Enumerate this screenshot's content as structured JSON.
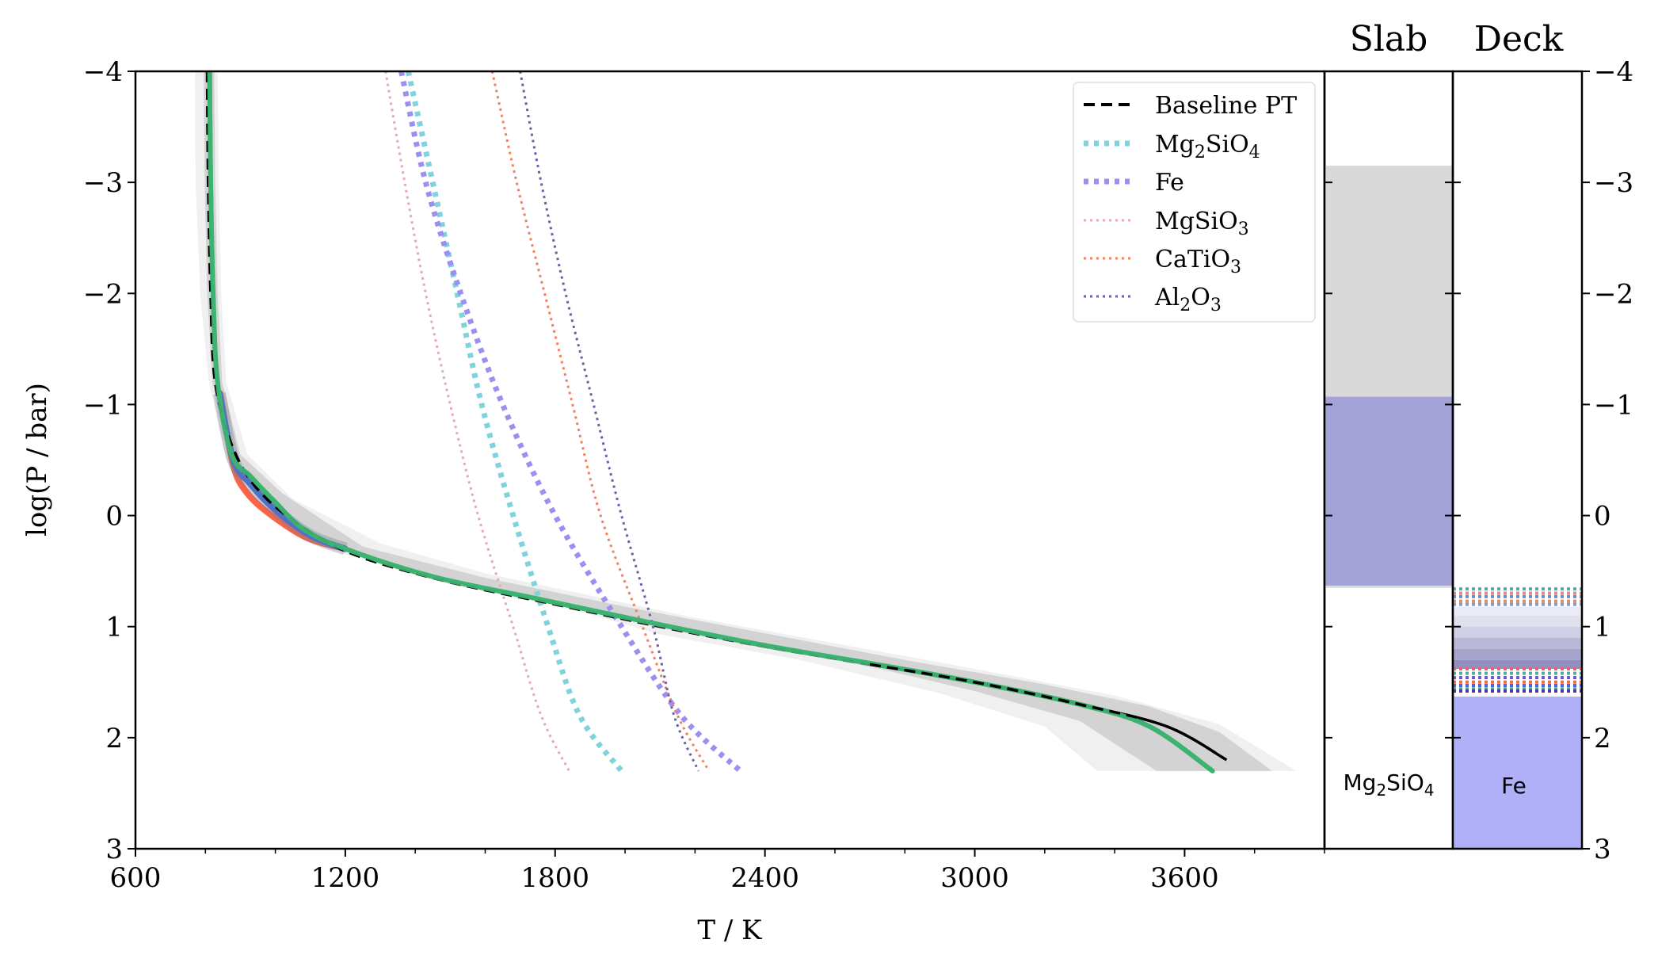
{
  "chart_data": {
    "type": "line",
    "xlabel": "T / K",
    "ylabel": "log(P / bar)",
    "xlim": [
      600,
      4000
    ],
    "ylim": [
      3,
      -4
    ],
    "x_ticks": [
      "600",
      "1200",
      "1800",
      "2400",
      "3000",
      "3600"
    ],
    "x_tick_values": [
      600,
      1200,
      1800,
      2400,
      3000,
      3600
    ],
    "y_ticks": [
      "−4",
      "−3",
      "−2",
      "−1",
      "0",
      "1",
      "2",
      "3"
    ],
    "y_tick_values": [
      -4,
      -3,
      -2,
      -1,
      0,
      1,
      2,
      3
    ],
    "baseline": {
      "name": "Baseline PT",
      "points": [
        [
          805,
          -4
        ],
        [
          808,
          -3
        ],
        [
          815,
          -2
        ],
        [
          828,
          -1.2
        ],
        [
          880,
          -0.6
        ],
        [
          960,
          -0.2
        ],
        [
          1100,
          0.15
        ],
        [
          1250,
          0.38
        ],
        [
          1500,
          0.6
        ],
        [
          1800,
          0.8
        ],
        [
          2100,
          1.0
        ],
        [
          2400,
          1.18
        ],
        [
          2700,
          1.34
        ],
        [
          3000,
          1.5
        ],
        [
          3300,
          1.7
        ],
        [
          3550,
          1.9
        ],
        [
          3720,
          2.2
        ]
      ]
    },
    "model_profiles": [
      {
        "name": "green",
        "color": "#3cb371",
        "points": [
          [
            812,
            -4
          ],
          [
            815,
            -3
          ],
          [
            822,
            -2
          ],
          [
            835,
            -1.2
          ],
          [
            875,
            -0.55
          ],
          [
            930,
            -0.35
          ],
          [
            1000,
            -0.12
          ],
          [
            1080,
            0.12
          ],
          [
            1200,
            0.3
          ],
          [
            1450,
            0.55
          ],
          [
            1750,
            0.75
          ],
          [
            2050,
            0.95
          ],
          [
            2400,
            1.17
          ],
          [
            2700,
            1.33
          ],
          [
            3000,
            1.5
          ],
          [
            3300,
            1.7
          ],
          [
            3500,
            1.9
          ],
          [
            3680,
            2.3
          ]
        ]
      },
      {
        "name": "blue",
        "color": "#4169e1",
        "points": [
          [
            840,
            -1.1
          ],
          [
            880,
            -0.5
          ],
          [
            930,
            -0.28
          ],
          [
            1000,
            -0.05
          ],
          [
            1100,
            0.18
          ],
          [
            1200,
            0.3
          ]
        ]
      },
      {
        "name": "red",
        "color": "#ff6347",
        "points": [
          [
            842,
            -1.1
          ],
          [
            880,
            -0.45
          ],
          [
            920,
            -0.2
          ],
          [
            990,
            0.0
          ],
          [
            1090,
            0.2
          ],
          [
            1200,
            0.3
          ]
        ]
      }
    ],
    "envelopes": [
      {
        "name": "outer",
        "color": "#f0f0f0",
        "left": [
          [
            770,
            -4
          ],
          [
            772,
            -3
          ],
          [
            785,
            -2
          ],
          [
            810,
            -1.2
          ],
          [
            860,
            -0.5
          ],
          [
            960,
            -0.1
          ],
          [
            1200,
            0.35
          ],
          [
            1500,
            0.62
          ],
          [
            1800,
            0.8
          ],
          [
            2100,
            1.07
          ],
          [
            2500,
            1.3
          ],
          [
            2900,
            1.6
          ],
          [
            3200,
            1.9
          ],
          [
            3350,
            2.3
          ]
        ],
        "right": [
          [
            835,
            -4
          ],
          [
            838,
            -3
          ],
          [
            845,
            -2
          ],
          [
            860,
            -1.2
          ],
          [
            920,
            -0.55
          ],
          [
            1050,
            -0.15
          ],
          [
            1300,
            0.25
          ],
          [
            1600,
            0.52
          ],
          [
            1900,
            0.72
          ],
          [
            2200,
            0.92
          ],
          [
            2600,
            1.15
          ],
          [
            3000,
            1.38
          ],
          [
            3400,
            1.62
          ],
          [
            3700,
            1.88
          ],
          [
            3920,
            2.3
          ]
        ]
      },
      {
        "name": "inner",
        "color": "#d3d3d3",
        "left": [
          [
            795,
            -4
          ],
          [
            798,
            -3
          ],
          [
            805,
            -2
          ],
          [
            820,
            -1.2
          ],
          [
            860,
            -0.6
          ],
          [
            940,
            -0.2
          ],
          [
            1150,
            0.28
          ],
          [
            1500,
            0.6
          ],
          [
            1900,
            0.85
          ],
          [
            2300,
            1.12
          ],
          [
            2700,
            1.36
          ],
          [
            3000,
            1.58
          ],
          [
            3300,
            1.85
          ],
          [
            3520,
            2.3
          ]
        ],
        "right": [
          [
            825,
            -4
          ],
          [
            828,
            -3
          ],
          [
            835,
            -2
          ],
          [
            848,
            -1.2
          ],
          [
            900,
            -0.55
          ],
          [
            1020,
            -0.2
          ],
          [
            1250,
            0.28
          ],
          [
            1600,
            0.56
          ],
          [
            2000,
            0.82
          ],
          [
            2400,
            1.06
          ],
          [
            2800,
            1.3
          ],
          [
            3200,
            1.52
          ],
          [
            3500,
            1.72
          ],
          [
            3700,
            1.95
          ],
          [
            3850,
            2.3
          ]
        ]
      }
    ],
    "condensation_curves": [
      {
        "name": "Mg₂SiO₄",
        "label": "Mg",
        "sub1": "2",
        "mid": "SiO",
        "sub2": "4",
        "color": "#7fd3dd",
        "style": "thick-dotted",
        "points": [
          [
            1380,
            -4
          ],
          [
            1450,
            -3
          ],
          [
            1520,
            -2
          ],
          [
            1590,
            -1
          ],
          [
            1680,
            0
          ],
          [
            1780,
            1
          ],
          [
            1870,
            1.8
          ],
          [
            1990,
            2.3
          ]
        ]
      },
      {
        "name": "Fe",
        "label": "Fe",
        "sub1": "",
        "mid": "",
        "sub2": "",
        "color": "#9e8ef0",
        "style": "thick-dotted",
        "points": [
          [
            1360,
            -4
          ],
          [
            1430,
            -3
          ],
          [
            1530,
            -2
          ],
          [
            1650,
            -1
          ],
          [
            1800,
            0
          ],
          [
            1990,
            1
          ],
          [
            2160,
            1.8
          ],
          [
            2330,
            2.3
          ]
        ]
      },
      {
        "name": "MgSiO₃",
        "label": "MgSiO",
        "sub1": "3",
        "mid": "",
        "sub2": "",
        "color": "#e8a7b8",
        "style": "thin-dotted",
        "points": [
          [
            1315,
            -4
          ],
          [
            1370,
            -3
          ],
          [
            1430,
            -2
          ],
          [
            1500,
            -1
          ],
          [
            1580,
            0
          ],
          [
            1680,
            1
          ],
          [
            1760,
            1.8
          ],
          [
            1840,
            2.3
          ]
        ]
      },
      {
        "name": "CaTiO₃",
        "label": "CaTiO",
        "sub1": "3",
        "mid": "",
        "sub2": "",
        "color": "#f0805e",
        "style": "thin-dotted",
        "points": [
          [
            1620,
            -4
          ],
          [
            1690,
            -3
          ],
          [
            1770,
            -2
          ],
          [
            1850,
            -1
          ],
          [
            1930,
            0
          ],
          [
            2050,
            1
          ],
          [
            2150,
            1.8
          ],
          [
            2240,
            2.3
          ]
        ]
      },
      {
        "name": "Al₂O₃",
        "label": "Al",
        "sub1": "2",
        "mid": "O",
        "sub2": "3",
        "color": "#6b5fa8",
        "style": "thin-dotted",
        "points": [
          [
            1700,
            -4
          ],
          [
            1760,
            -3
          ],
          [
            1830,
            -2
          ],
          [
            1910,
            -1
          ],
          [
            1990,
            0
          ],
          [
            2080,
            1
          ],
          [
            2140,
            1.8
          ],
          [
            2210,
            2.3
          ]
        ]
      }
    ],
    "legend": {
      "placement": "top-right",
      "entries": [
        {
          "label": "Baseline PT"
        },
        {
          "label": "Mg",
          "sub1": "2",
          "mid": "SiO",
          "sub2": "4"
        },
        {
          "label": "Fe"
        },
        {
          "label": "MgSiO",
          "sub1": "3"
        },
        {
          "label": "CaTiO",
          "sub1": "3"
        },
        {
          "label": "Al",
          "sub1": "2",
          "mid": "O",
          "sub2": "3"
        }
      ]
    },
    "slab_panel": {
      "title": "Slab",
      "band_grey": {
        "top": -3.15,
        "bottom": 0.65,
        "color": "#d9d9d9"
      },
      "band_purple": {
        "top": -1.07,
        "bottom": 0.63,
        "color": "#a3a3d8"
      },
      "label": "Mg",
      "label_sub": "2",
      "label_mid": "SiO",
      "label_sub2": "4"
    },
    "deck_panel": {
      "title": "Deck",
      "fill": {
        "top": 1.63,
        "bottom": 3,
        "color": "#b0b0f8"
      },
      "label": "Fe",
      "cloud_top_lines": [
        {
          "level": 0.66,
          "color": "#5aa9a0"
        },
        {
          "level": 0.7,
          "color": "#e28b82"
        },
        {
          "level": 0.73,
          "color": "#6a8fc8"
        },
        {
          "level": 0.77,
          "color": "#e88a6a"
        },
        {
          "level": 0.8,
          "color": "#7b9ecb"
        },
        {
          "level": 1.38,
          "color": "#e06666"
        },
        {
          "level": 1.42,
          "color": "#5aa9a0"
        },
        {
          "level": 1.46,
          "color": "#6a5acd"
        },
        {
          "level": 1.5,
          "color": "#ff6347"
        },
        {
          "level": 1.53,
          "color": "#4169e1"
        },
        {
          "level": 1.56,
          "color": "#3cb371"
        },
        {
          "level": 1.58,
          "color": "#5b2d9e"
        }
      ],
      "shade_bands": [
        {
          "top": 0.82,
          "bottom": 0.9,
          "color": "#ebebf5"
        },
        {
          "top": 0.9,
          "bottom": 1.0,
          "color": "#e0e0ee"
        },
        {
          "top": 1.0,
          "bottom": 1.1,
          "color": "#cfcfe6"
        },
        {
          "top": 1.1,
          "bottom": 1.2,
          "color": "#b8b8d8"
        },
        {
          "top": 1.2,
          "bottom": 1.3,
          "color": "#a4a4cc"
        },
        {
          "top": 1.3,
          "bottom": 1.38,
          "color": "#8f8fc0"
        }
      ]
    },
    "right_y_ticks": [
      "−4",
      "−3",
      "−2",
      "−1",
      "0",
      "1",
      "2",
      "3"
    ]
  }
}
